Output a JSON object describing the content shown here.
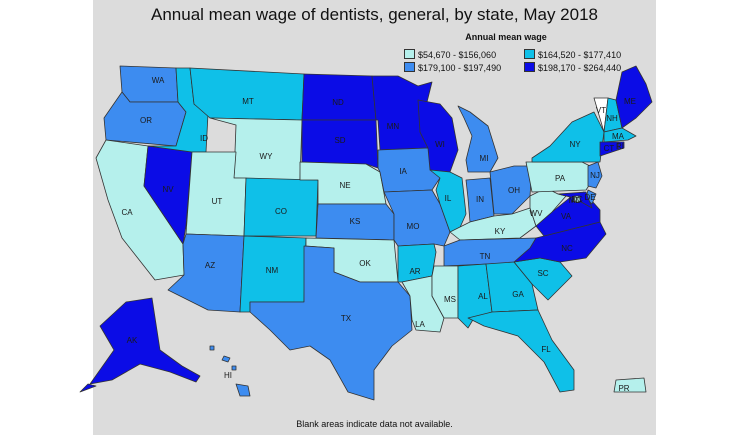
{
  "title": "Annual mean wage of dentists, general, by state, May 2018",
  "footnote": "Blank areas indicate data not available.",
  "legend": {
    "title": "Annual mean wage",
    "items": [
      {
        "range": "$54,670 - $156,060",
        "color": "#b5f0ec"
      },
      {
        "range": "$164,520 - $177,410",
        "color": "#0fc0e8"
      },
      {
        "range": "$179,100 - $197,490",
        "color": "#3d8cf0"
      },
      {
        "range": "$198,170 - $264,440",
        "color": "#0b0ce6"
      }
    ]
  },
  "states": [
    {
      "abbr": "WA",
      "cls": 2
    },
    {
      "abbr": "OR",
      "cls": 2
    },
    {
      "abbr": "CA",
      "cls": 0
    },
    {
      "abbr": "NV",
      "cls": 3
    },
    {
      "abbr": "ID",
      "cls": 1
    },
    {
      "abbr": "MT",
      "cls": 1
    },
    {
      "abbr": "WY",
      "cls": 0
    },
    {
      "abbr": "UT",
      "cls": 0
    },
    {
      "abbr": "CO",
      "cls": 1
    },
    {
      "abbr": "AZ",
      "cls": 2
    },
    {
      "abbr": "NM",
      "cls": 1
    },
    {
      "abbr": "ND",
      "cls": 3
    },
    {
      "abbr": "SD",
      "cls": 3
    },
    {
      "abbr": "NE",
      "cls": 0
    },
    {
      "abbr": "KS",
      "cls": 2
    },
    {
      "abbr": "OK",
      "cls": 0
    },
    {
      "abbr": "TX",
      "cls": 2
    },
    {
      "abbr": "MN",
      "cls": 3
    },
    {
      "abbr": "IA",
      "cls": 2
    },
    {
      "abbr": "MO",
      "cls": 2
    },
    {
      "abbr": "AR",
      "cls": 1
    },
    {
      "abbr": "LA",
      "cls": 0
    },
    {
      "abbr": "WI",
      "cls": 3
    },
    {
      "abbr": "IL",
      "cls": 1
    },
    {
      "abbr": "MI",
      "cls": 2
    },
    {
      "abbr": "IN",
      "cls": 2
    },
    {
      "abbr": "OH",
      "cls": 2
    },
    {
      "abbr": "KY",
      "cls": 0
    },
    {
      "abbr": "TN",
      "cls": 2
    },
    {
      "abbr": "MS",
      "cls": 0
    },
    {
      "abbr": "AL",
      "cls": 1
    },
    {
      "abbr": "GA",
      "cls": 1
    },
    {
      "abbr": "FL",
      "cls": 1
    },
    {
      "abbr": "SC",
      "cls": 1
    },
    {
      "abbr": "NC",
      "cls": 3
    },
    {
      "abbr": "VA",
      "cls": 3
    },
    {
      "abbr": "WV",
      "cls": 0
    },
    {
      "abbr": "PA",
      "cls": 0
    },
    {
      "abbr": "NY",
      "cls": 1
    },
    {
      "abbr": "VT",
      "cls": 4
    },
    {
      "abbr": "NH",
      "cls": 1
    },
    {
      "abbr": "ME",
      "cls": 3
    },
    {
      "abbr": "MA",
      "cls": 1
    },
    {
      "abbr": "RI",
      "cls": 3
    },
    {
      "abbr": "CT",
      "cls": 3
    },
    {
      "abbr": "NJ",
      "cls": 2
    },
    {
      "abbr": "DE",
      "cls": 2
    },
    {
      "abbr": "MD",
      "cls": 3
    },
    {
      "abbr": "DC",
      "cls": 0
    },
    {
      "abbr": "AK",
      "cls": 3
    },
    {
      "abbr": "HI",
      "cls": 2
    },
    {
      "abbr": "PR",
      "cls": 0
    }
  ]
}
